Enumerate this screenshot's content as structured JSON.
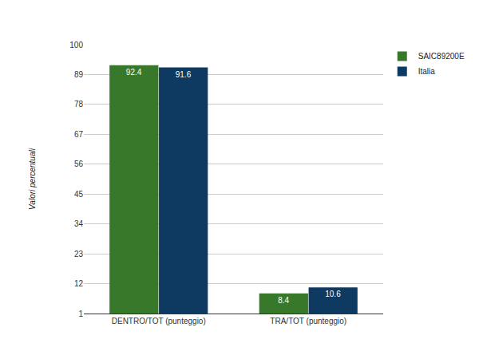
{
  "chart_data": {
    "type": "bar",
    "y_label": "Valori percentuali",
    "categories": [
      "DENTRO/TOT (punteggio)",
      "TRA/TOT (punteggio)"
    ],
    "series": [
      {
        "name": "SAIC89200E",
        "color": "#38782b",
        "values": [
          92.4,
          8.4
        ]
      },
      {
        "name": "Italia",
        "color": "#0e3a62",
        "values": [
          91.6,
          10.6
        ]
      }
    ],
    "ylim": [
      1,
      100
    ],
    "yticks": [
      1,
      12,
      23,
      34,
      45,
      56,
      67,
      78,
      89,
      100
    ],
    "grid": true,
    "legend": "top right",
    "data_labels": true
  }
}
